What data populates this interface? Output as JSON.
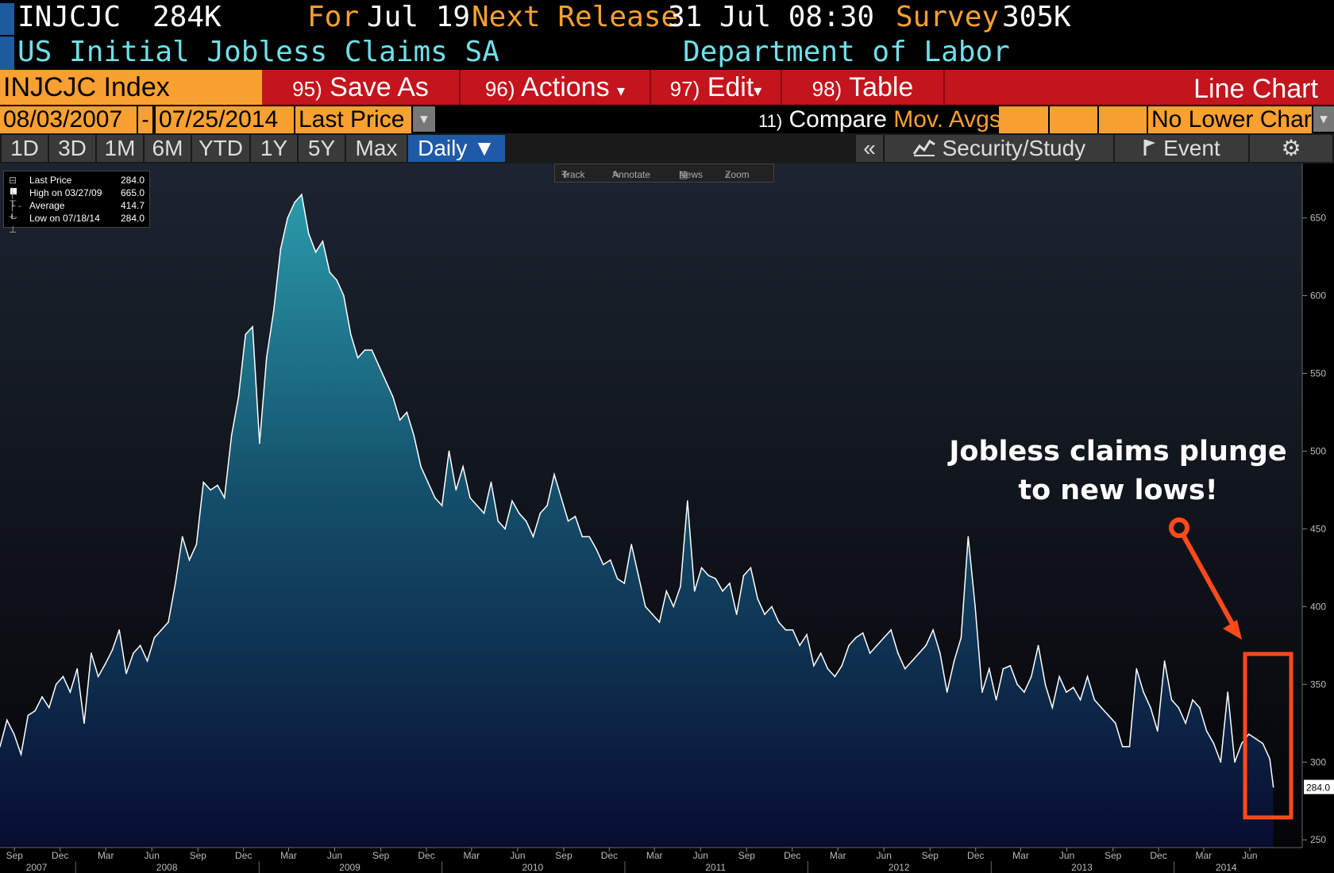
{
  "header": {
    "ticker": "INJCJC",
    "value": "284K",
    "for_label": "For",
    "for_date": "Jul 19",
    "next_release_label": "Next Release",
    "next_release": "31 Jul 08:30",
    "survey_label": "Survey",
    "survey_value": "305K",
    "name": "US Initial Jobless Claims SA",
    "source": "Department of Labor"
  },
  "command_bar": {
    "index": "INJCJC Index",
    "buttons": [
      {
        "num": "95)",
        "label": "Save As"
      },
      {
        "num": "96)",
        "label": "Actions",
        "caret": "▾"
      },
      {
        "num": "97)",
        "label": "Edit",
        "caret": "▾"
      },
      {
        "num": "98)",
        "label": "Table"
      }
    ],
    "chart_type": "Line Chart"
  },
  "date_bar": {
    "start": "08/03/2007",
    "separator": "-",
    "end": "07/25/2014",
    "field": "Last Price",
    "compare_num": "11)",
    "compare_label": "Compare",
    "mov_avgs": "Mov. Avgs",
    "lower_chart": "No Lower Chart"
  },
  "period_bar": {
    "periods": [
      "1D",
      "3D",
      "1M",
      "6M",
      "YTD",
      "1Y",
      "5Y",
      "Max"
    ],
    "frequency": "Daily ▼",
    "collapse": "«",
    "security_study": "Security/Study",
    "event": "Event",
    "settings_icon": "gear-icon"
  },
  "toolbar": {
    "track": "Track",
    "annotate": "Annotate",
    "news": "News",
    "zoom": "Zoom"
  },
  "legend": {
    "rows": [
      {
        "label": "Last Price",
        "value": "284.0"
      },
      {
        "label": "High on 03/27/09",
        "value": "665.0"
      },
      {
        "label": "Average",
        "value": "414.7"
      },
      {
        "label": "Low on 07/18/14",
        "value": "284.0"
      }
    ]
  },
  "annotation": {
    "line1": "Jobless claims plunge",
    "line2": "to new lows!"
  },
  "colors": {
    "accent": "#f8a030",
    "command_red": "#c4141d",
    "name_cyan": "#6fe0e8",
    "highlight": "#ff4a1c"
  },
  "chart_data": {
    "type": "area",
    "last_price_label": "284.0",
    "ylim": [
      245,
      685
    ],
    "y_ticks": [
      250,
      300,
      350,
      400,
      450,
      500,
      550,
      600,
      650
    ],
    "xlim": [
      "2007-08-03",
      "2014-07-25"
    ],
    "month_ticks": [
      {
        "label": "Sep",
        "date": "2007-09-01"
      },
      {
        "label": "Dec",
        "date": "2007-12-01"
      },
      {
        "label": "Mar",
        "date": "2008-03-01"
      },
      {
        "label": "Jun",
        "date": "2008-06-01"
      },
      {
        "label": "Sep",
        "date": "2008-09-01"
      },
      {
        "label": "Dec",
        "date": "2008-12-01"
      },
      {
        "label": "Mar",
        "date": "2009-03-01"
      },
      {
        "label": "Jun",
        "date": "2009-06-01"
      },
      {
        "label": "Sep",
        "date": "2009-09-01"
      },
      {
        "label": "Dec",
        "date": "2009-12-01"
      },
      {
        "label": "Mar",
        "date": "2010-03-01"
      },
      {
        "label": "Jun",
        "date": "2010-06-01"
      },
      {
        "label": "Sep",
        "date": "2010-09-01"
      },
      {
        "label": "Dec",
        "date": "2010-12-01"
      },
      {
        "label": "Mar",
        "date": "2011-03-01"
      },
      {
        "label": "Jun",
        "date": "2011-06-01"
      },
      {
        "label": "Sep",
        "date": "2011-09-01"
      },
      {
        "label": "Dec",
        "date": "2011-12-01"
      },
      {
        "label": "Mar",
        "date": "2012-03-01"
      },
      {
        "label": "Jun",
        "date": "2012-06-01"
      },
      {
        "label": "Sep",
        "date": "2012-09-01"
      },
      {
        "label": "Dec",
        "date": "2012-12-01"
      },
      {
        "label": "Mar",
        "date": "2013-03-01"
      },
      {
        "label": "Jun",
        "date": "2013-06-01"
      },
      {
        "label": "Sep",
        "date": "2013-09-01"
      },
      {
        "label": "Dec",
        "date": "2013-12-01"
      },
      {
        "label": "Mar",
        "date": "2014-03-01"
      },
      {
        "label": "Jun",
        "date": "2014-06-01"
      }
    ],
    "year_ticks": [
      {
        "label": "2007",
        "date": "2007-10-15"
      },
      {
        "label": "2008",
        "date": "2008-07-01"
      },
      {
        "label": "2009",
        "date": "2009-07-01"
      },
      {
        "label": "2010",
        "date": "2010-07-01"
      },
      {
        "label": "2011",
        "date": "2011-07-01"
      },
      {
        "label": "2012",
        "date": "2012-07-01"
      },
      {
        "label": "2013",
        "date": "2013-07-01"
      },
      {
        "label": "2014",
        "date": "2014-04-15"
      }
    ],
    "series": [
      {
        "values": [
          [
            "2007-08-03",
            310
          ],
          [
            "2007-08-17",
            327
          ],
          [
            "2007-08-31",
            318
          ],
          [
            "2007-09-14",
            305
          ],
          [
            "2007-09-28",
            330
          ],
          [
            "2007-10-12",
            333
          ],
          [
            "2007-10-26",
            342
          ],
          [
            "2007-11-09",
            335
          ],
          [
            "2007-11-23",
            350
          ],
          [
            "2007-12-07",
            355
          ],
          [
            "2007-12-21",
            345
          ],
          [
            "2008-01-04",
            360
          ],
          [
            "2008-01-18",
            325
          ],
          [
            "2008-02-01",
            370
          ],
          [
            "2008-02-15",
            355
          ],
          [
            "2008-02-29",
            363
          ],
          [
            "2008-03-14",
            372
          ],
          [
            "2008-03-28",
            385
          ],
          [
            "2008-04-11",
            357
          ],
          [
            "2008-04-25",
            370
          ],
          [
            "2008-05-09",
            375
          ],
          [
            "2008-05-23",
            365
          ],
          [
            "2008-06-06",
            380
          ],
          [
            "2008-06-20",
            385
          ],
          [
            "2008-07-04",
            390
          ],
          [
            "2008-07-18",
            415
          ],
          [
            "2008-08-01",
            445
          ],
          [
            "2008-08-15",
            430
          ],
          [
            "2008-08-29",
            440
          ],
          [
            "2008-09-12",
            480
          ],
          [
            "2008-09-26",
            475
          ],
          [
            "2008-10-10",
            478
          ],
          [
            "2008-10-24",
            470
          ],
          [
            "2008-11-07",
            510
          ],
          [
            "2008-11-21",
            535
          ],
          [
            "2008-12-05",
            575
          ],
          [
            "2008-12-19",
            580
          ],
          [
            "2009-01-02",
            505
          ],
          [
            "2009-01-16",
            560
          ],
          [
            "2009-01-30",
            590
          ],
          [
            "2009-02-13",
            630
          ],
          [
            "2009-02-27",
            650
          ],
          [
            "2009-03-13",
            660
          ],
          [
            "2009-03-27",
            665
          ],
          [
            "2009-04-10",
            640
          ],
          [
            "2009-04-24",
            628
          ],
          [
            "2009-05-08",
            635
          ],
          [
            "2009-05-22",
            615
          ],
          [
            "2009-06-05",
            610
          ],
          [
            "2009-06-19",
            600
          ],
          [
            "2009-07-03",
            575
          ],
          [
            "2009-07-17",
            560
          ],
          [
            "2009-07-31",
            565
          ],
          [
            "2009-08-14",
            565
          ],
          [
            "2009-08-28",
            555
          ],
          [
            "2009-09-11",
            545
          ],
          [
            "2009-09-25",
            535
          ],
          [
            "2009-10-09",
            520
          ],
          [
            "2009-10-23",
            525
          ],
          [
            "2009-11-06",
            510
          ],
          [
            "2009-11-20",
            490
          ],
          [
            "2009-12-04",
            480
          ],
          [
            "2009-12-18",
            470
          ],
          [
            "2010-01-01",
            465
          ],
          [
            "2010-01-15",
            500
          ],
          [
            "2010-01-29",
            475
          ],
          [
            "2010-02-12",
            490
          ],
          [
            "2010-02-26",
            470
          ],
          [
            "2010-03-12",
            465
          ],
          [
            "2010-03-26",
            460
          ],
          [
            "2010-04-09",
            480
          ],
          [
            "2010-04-23",
            455
          ],
          [
            "2010-05-07",
            450
          ],
          [
            "2010-05-21",
            468
          ],
          [
            "2010-06-04",
            460
          ],
          [
            "2010-06-18",
            455
          ],
          [
            "2010-07-02",
            445
          ],
          [
            "2010-07-16",
            460
          ],
          [
            "2010-07-30",
            465
          ],
          [
            "2010-08-13",
            485
          ],
          [
            "2010-08-27",
            470
          ],
          [
            "2010-09-10",
            455
          ],
          [
            "2010-09-24",
            458
          ],
          [
            "2010-10-08",
            445
          ],
          [
            "2010-10-22",
            445
          ],
          [
            "2010-11-05",
            437
          ],
          [
            "2010-11-19",
            427
          ],
          [
            "2010-12-03",
            430
          ],
          [
            "2010-12-17",
            418
          ],
          [
            "2010-12-31",
            415
          ],
          [
            "2011-01-14",
            440
          ],
          [
            "2011-01-28",
            420
          ],
          [
            "2011-02-11",
            400
          ],
          [
            "2011-02-25",
            395
          ],
          [
            "2011-03-11",
            390
          ],
          [
            "2011-03-25",
            410
          ],
          [
            "2011-04-08",
            400
          ],
          [
            "2011-04-22",
            413
          ],
          [
            "2011-05-06",
            468
          ],
          [
            "2011-05-20",
            410
          ],
          [
            "2011-06-03",
            425
          ],
          [
            "2011-06-17",
            420
          ],
          [
            "2011-07-01",
            418
          ],
          [
            "2011-07-15",
            410
          ],
          [
            "2011-07-29",
            415
          ],
          [
            "2011-08-12",
            395
          ],
          [
            "2011-08-26",
            420
          ],
          [
            "2011-09-09",
            425
          ],
          [
            "2011-09-23",
            405
          ],
          [
            "2011-10-07",
            395
          ],
          [
            "2011-10-21",
            400
          ],
          [
            "2011-11-04",
            390
          ],
          [
            "2011-11-18",
            385
          ],
          [
            "2011-12-02",
            385
          ],
          [
            "2011-12-16",
            375
          ],
          [
            "2011-12-30",
            382
          ],
          [
            "2012-01-13",
            362
          ],
          [
            "2012-01-27",
            370
          ],
          [
            "2012-02-10",
            360
          ],
          [
            "2012-02-24",
            355
          ],
          [
            "2012-03-09",
            362
          ],
          [
            "2012-03-23",
            375
          ],
          [
            "2012-04-06",
            380
          ],
          [
            "2012-04-20",
            383
          ],
          [
            "2012-05-04",
            370
          ],
          [
            "2012-05-18",
            375
          ],
          [
            "2012-06-01",
            380
          ],
          [
            "2012-06-15",
            385
          ],
          [
            "2012-06-29",
            370
          ],
          [
            "2012-07-13",
            360
          ],
          [
            "2012-07-27",
            365
          ],
          [
            "2012-08-10",
            370
          ],
          [
            "2012-08-24",
            375
          ],
          [
            "2012-09-07",
            385
          ],
          [
            "2012-09-21",
            370
          ],
          [
            "2012-10-05",
            345
          ],
          [
            "2012-10-19",
            365
          ],
          [
            "2012-11-02",
            380
          ],
          [
            "2012-11-16",
            445
          ],
          [
            "2012-11-30",
            400
          ],
          [
            "2012-12-14",
            345
          ],
          [
            "2012-12-28",
            360
          ],
          [
            "2013-01-11",
            340
          ],
          [
            "2013-01-25",
            360
          ],
          [
            "2013-02-08",
            362
          ],
          [
            "2013-02-22",
            350
          ],
          [
            "2013-03-08",
            345
          ],
          [
            "2013-03-22",
            355
          ],
          [
            "2013-04-05",
            375
          ],
          [
            "2013-04-19",
            350
          ],
          [
            "2013-05-03",
            335
          ],
          [
            "2013-05-17",
            355
          ],
          [
            "2013-05-31",
            345
          ],
          [
            "2013-06-14",
            348
          ],
          [
            "2013-06-28",
            340
          ],
          [
            "2013-07-12",
            355
          ],
          [
            "2013-07-26",
            340
          ],
          [
            "2013-08-09",
            335
          ],
          [
            "2013-08-23",
            330
          ],
          [
            "2013-09-06",
            325
          ],
          [
            "2013-09-20",
            310
          ],
          [
            "2013-10-04",
            310
          ],
          [
            "2013-10-18",
            360
          ],
          [
            "2013-11-01",
            345
          ],
          [
            "2013-11-15",
            335
          ],
          [
            "2013-11-29",
            320
          ],
          [
            "2013-12-13",
            365
          ],
          [
            "2013-12-27",
            340
          ],
          [
            "2014-01-10",
            335
          ],
          [
            "2014-01-24",
            325
          ],
          [
            "2014-02-07",
            340
          ],
          [
            "2014-02-21",
            335
          ],
          [
            "2014-03-07",
            320
          ],
          [
            "2014-03-21",
            312
          ],
          [
            "2014-04-04",
            300
          ],
          [
            "2014-04-18",
            345
          ],
          [
            "2014-05-02",
            300
          ],
          [
            "2014-05-16",
            312
          ],
          [
            "2014-05-30",
            318
          ],
          [
            "2014-06-13",
            315
          ],
          [
            "2014-06-27",
            312
          ],
          [
            "2014-07-11",
            302
          ],
          [
            "2014-07-18",
            284
          ]
        ]
      }
    ]
  }
}
